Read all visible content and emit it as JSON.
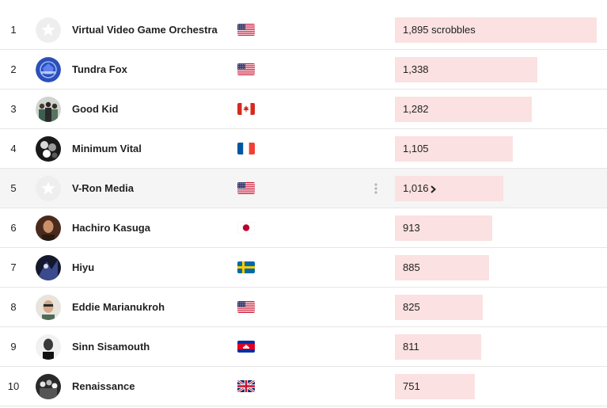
{
  "chart_data": {
    "type": "bar",
    "categories": [
      "Virtual Video Game Orchestra",
      "Tundra Fox",
      "Good Kid",
      "Minimum Vital",
      "V-Ron Media",
      "Hachiro Kasuga",
      "Hiyu",
      "Eddie Marianukroh",
      "Sinn Sisamouth",
      "Renaissance"
    ],
    "values": [
      1895,
      1338,
      1282,
      1105,
      1016,
      913,
      885,
      825,
      811,
      751
    ],
    "unit": "scrobbles",
    "xlim": [
      0,
      1895
    ]
  },
  "rows": [
    {
      "rank": "1",
      "name": "Virtual Video Game Orchestra",
      "flag": "us",
      "count": "1,895 scrobbles",
      "avatar": "placeholder-star"
    },
    {
      "rank": "2",
      "name": "Tundra Fox",
      "flag": "us",
      "count": "1,338",
      "avatar": "blue-logo"
    },
    {
      "rank": "3",
      "name": "Good Kid",
      "flag": "ca",
      "count": "1,282",
      "avatar": "band-photo"
    },
    {
      "rank": "4",
      "name": "Minimum Vital",
      "flag": "fr",
      "count": "1,105",
      "avatar": "bw-collage"
    },
    {
      "rank": "5",
      "name": "V-Ron Media",
      "flag": "us",
      "count": "1,016",
      "avatar": "placeholder-star"
    },
    {
      "rank": "6",
      "name": "Hachiro Kasuga",
      "flag": "jp",
      "count": "913",
      "avatar": "portrait-warm"
    },
    {
      "rank": "7",
      "name": "Hiyu",
      "flag": "se",
      "count": "885",
      "avatar": "dark-art"
    },
    {
      "rank": "8",
      "name": "Eddie Marianukroh",
      "flag": "us",
      "count": "825",
      "avatar": "portrait-light"
    },
    {
      "rank": "9",
      "name": "Sinn Sisamouth",
      "flag": "kh",
      "count": "811",
      "avatar": "bw-portrait"
    },
    {
      "rank": "10",
      "name": "Renaissance",
      "flag": "gb",
      "count": "751",
      "avatar": "bw-band"
    }
  ],
  "hover_row_index": 4,
  "colors": {
    "bar": "#fbe1e1",
    "hover_row": "#f5f5f5",
    "divider": "#e6e6e6",
    "text": "#222222"
  },
  "icons": {
    "menu": "more-vertical-icon",
    "chevron": "chevron-right-icon",
    "placeholder": "star-icon"
  }
}
